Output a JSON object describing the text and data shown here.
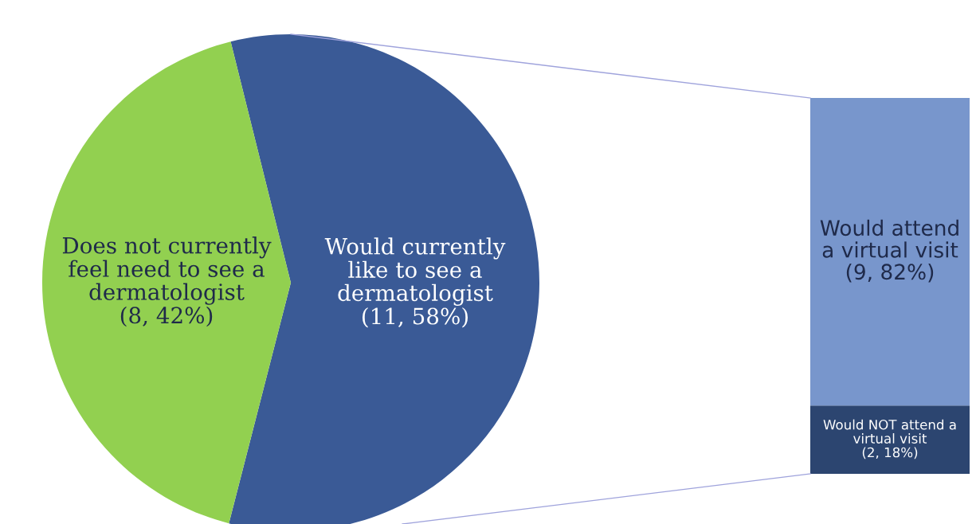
{
  "chart_data": [
    {
      "type": "pie",
      "categories": [
        "Would currently\nlike to see a\ndermatologist",
        "Does not currently\nfeel need to see a\ndermatologist"
      ],
      "values": [
        11,
        8
      ],
      "colors": [
        "#3a5a96",
        "#92d050"
      ],
      "value_labels": [
        "(11, 58%)",
        "(8, 42%)"
      ]
    },
    {
      "type": "bar",
      "stacked": true,
      "categories": [
        null
      ],
      "series": [
        {
          "name": "Would NOT attend a\nvirtual visit",
          "color": "#2c4570",
          "values": [
            2
          ],
          "value_labels": [
            "(2, 18%)"
          ]
        },
        {
          "name": "Would attend\na virtual visit",
          "color": "#7896cc",
          "values": [
            9
          ],
          "value_labels": [
            "(9, 82%)"
          ]
        }
      ]
    }
  ]
}
